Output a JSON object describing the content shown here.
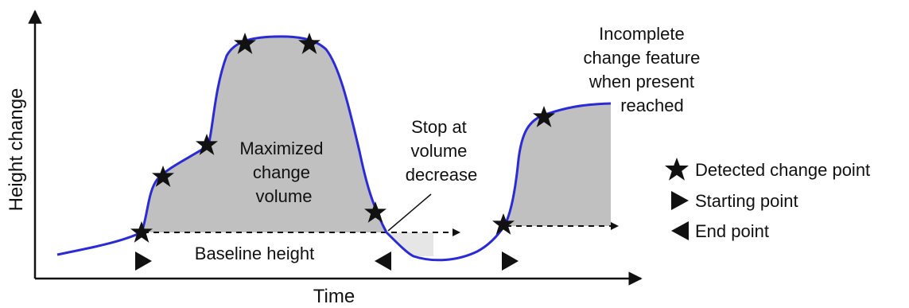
{
  "axes": {
    "y_title": "Height change",
    "x_title": "Time"
  },
  "annotations": {
    "maximized_volume": [
      "Maximized",
      "change",
      "volume"
    ],
    "stop_at_decrease": [
      "Stop at",
      "volume",
      "decrease"
    ],
    "incomplete_feature": [
      "Incomplete",
      "change feature",
      "when present",
      "reached"
    ],
    "baseline": "Baseline height"
  },
  "legend": {
    "detected_change_point": "Detected change point",
    "starting_point": "Starting point",
    "end_point": "End point"
  },
  "colors": {
    "curve": "#2b2bd6",
    "fill": "#c0c0c0",
    "ink": "#111111"
  },
  "icons": {
    "detected_change_point": "star-icon",
    "starting_point": "right-triangle-icon",
    "end_point": "left-triangle-icon"
  }
}
